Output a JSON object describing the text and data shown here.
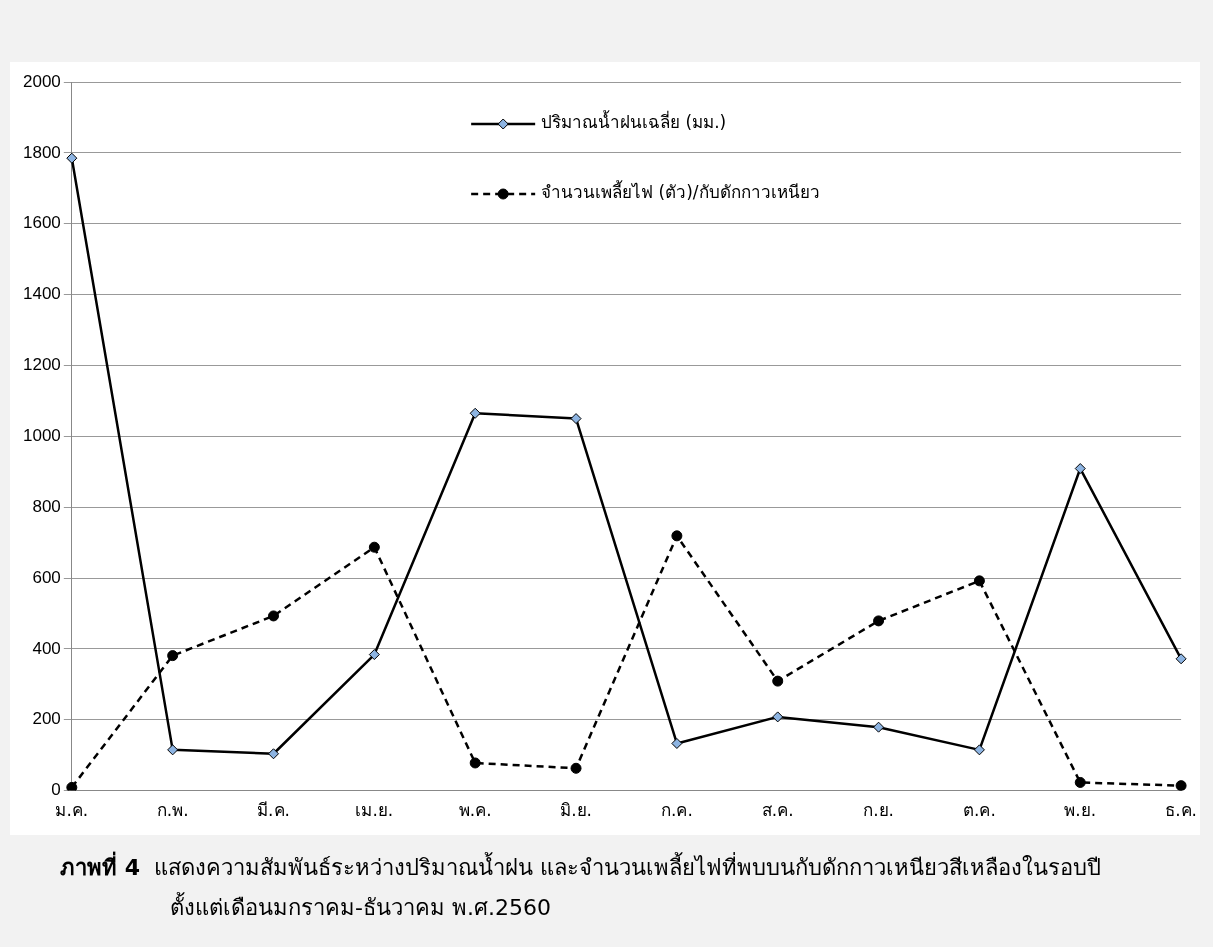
{
  "chart_data": {
    "type": "line",
    "categories": [
      "ม.ค.",
      "ก.พ.",
      "มี.ค.",
      "เม.ย.",
      "พ.ค.",
      "มิ.ย.",
      "ก.ค.",
      "ส.ค.",
      "ก.ย.",
      "ต.ค.",
      "พ.ย.",
      "ธ.ค."
    ],
    "series": [
      {
        "name": "ปริมาณน้ำฝนเฉลี่ย (มม.)",
        "color": "#000000",
        "marker": "diamond",
        "line_style": "solid",
        "values": [
          1785,
          115,
          104,
          384,
          1065,
          1050,
          133,
          208,
          179,
          115,
          909,
          372
        ]
      },
      {
        "name": "จำนวนเพลี้ยไฟ (ตัว)/กับดักกาวเหนียว",
        "color": "#000000",
        "marker": "circle",
        "line_style": "dashed",
        "values": [
          9,
          381,
          493,
          687,
          78,
          63,
          719,
          309,
          479,
          592,
          23,
          14
        ]
      }
    ],
    "ylim": [
      0,
      2000
    ],
    "yticks": [
      0,
      200,
      400,
      600,
      800,
      1000,
      1200,
      1400,
      1600,
      1800,
      2000
    ],
    "grid": "y",
    "legend": "top",
    "annotations": [
      "ภาพที่ 4",
      "แสดงความสัมพันธ์ระหว่างปริมาณน้ำฝน และจำนวนเพลี้ยไฟที่พบบนกับดักกาวเหนียวสีเหลืองในรอบปี ตั้งแต่เดือนมกราคม-ธันวาคม พ.ศ.2560"
    ]
  }
}
